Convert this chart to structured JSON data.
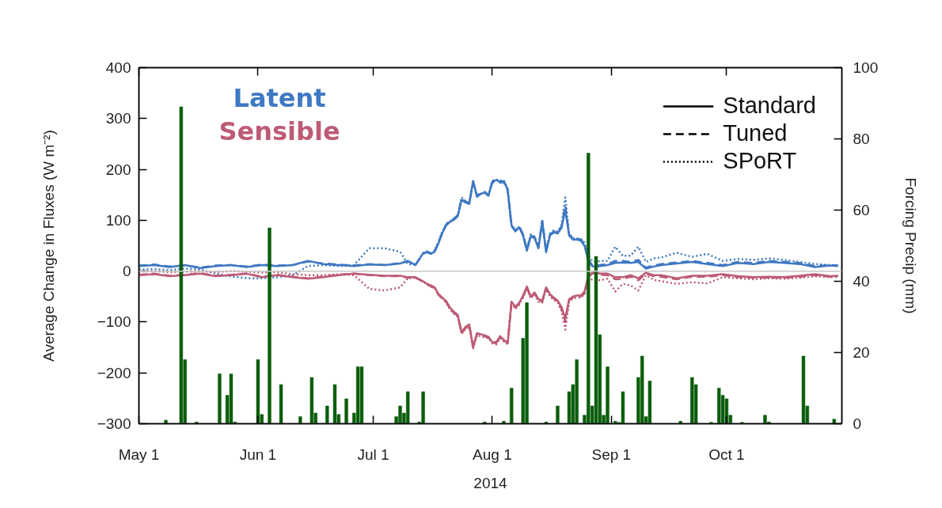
{
  "chart_data": {
    "type": "line",
    "xlabel": "2014",
    "ylabel": "Average Change in Fluxes (W m⁻²)",
    "y2label": "Forcing Precip (mm)",
    "annotations": [
      "Standard",
      "Tuned",
      "SPoRT"
    ],
    "xlim": [
      "2014-05-01",
      "2014-10-31"
    ],
    "xticks": [
      {
        "value": "2014-05-01",
        "label": "May 1"
      },
      {
        "value": "2014-06-01",
        "label": "Jun 1"
      },
      {
        "value": "2014-07-01",
        "label": "Jul 1"
      },
      {
        "value": "2014-08-01",
        "label": "Aug 1"
      },
      {
        "value": "2014-09-01",
        "label": "Sep 1"
      },
      {
        "value": "2014-10-01",
        "label": "Oct 1"
      }
    ],
    "ylim": [
      -300,
      400
    ],
    "yticks": [
      {
        "value": -300,
        "label": "−300"
      },
      {
        "value": -200,
        "label": "−200"
      },
      {
        "value": -100,
        "label": "−100"
      },
      0,
      100,
      200,
      300,
      400
    ],
    "y2lim": [
      0,
      100
    ],
    "y2ticks": [
      0,
      20,
      40,
      60,
      80,
      100
    ],
    "legend": "top left",
    "ref_lines": [
      {
        "axis": "y",
        "value": 0,
        "color": "#c8c8c8"
      }
    ],
    "x": [
      "2014-05-01",
      "2014-05-05",
      "2014-05-09",
      "2014-05-13",
      "2014-05-17",
      "2014-05-21",
      "2014-05-25",
      "2014-05-29",
      "2014-06-02",
      "2014-06-06",
      "2014-06-10",
      "2014-06-14",
      "2014-06-18",
      "2014-06-22",
      "2014-06-26",
      "2014-06-30",
      "2014-07-04",
      "2014-07-08",
      "2014-07-10",
      "2014-07-12",
      "2014-07-14",
      "2014-07-15",
      "2014-07-16",
      "2014-07-17",
      "2014-07-18",
      "2014-07-19",
      "2014-07-20",
      "2014-07-21",
      "2014-07-22",
      "2014-07-23",
      "2014-07-24",
      "2014-07-25",
      "2014-07-26",
      "2014-07-27",
      "2014-07-28",
      "2014-07-29",
      "2014-07-30",
      "2014-07-31",
      "2014-08-01",
      "2014-08-02",
      "2014-08-03",
      "2014-08-04",
      "2014-08-05",
      "2014-08-06",
      "2014-08-07",
      "2014-08-08",
      "2014-08-09",
      "2014-08-10",
      "2014-08-11",
      "2014-08-12",
      "2014-08-13",
      "2014-08-14",
      "2014-08-15",
      "2014-08-16",
      "2014-08-17",
      "2014-08-18",
      "2014-08-19",
      "2014-08-20",
      "2014-08-21",
      "2014-08-22",
      "2014-08-23",
      "2014-08-24",
      "2014-08-25",
      "2014-08-26",
      "2014-08-27",
      "2014-08-28",
      "2014-08-29",
      "2014-08-31",
      "2014-09-02",
      "2014-09-04",
      "2014-09-06",
      "2014-09-08",
      "2014-09-10",
      "2014-09-12",
      "2014-09-14",
      "2014-09-18",
      "2014-09-22",
      "2014-09-26",
      "2014-09-30",
      "2014-10-04",
      "2014-10-08",
      "2014-10-12",
      "2014-10-16",
      "2014-10-20",
      "2014-10-24",
      "2014-10-28",
      "2014-10-30"
    ],
    "series": [
      {
        "name": "Latent",
        "color": "#3f78c2",
        "line_style": "solid",
        "values": [
          10,
          12,
          8,
          12,
          6,
          10,
          12,
          8,
          12,
          10,
          12,
          20,
          14,
          12,
          10,
          13,
          12,
          15,
          20,
          12,
          35,
          37,
          34,
          38,
          55,
          75,
          90,
          97,
          101,
          108,
          140,
          135,
          132,
          177,
          146,
          152,
          154,
          148,
          176,
          179,
          176,
          177,
          160,
          90,
          78,
          86,
          70,
          40,
          68,
          65,
          45,
          97,
          37,
          70,
          76,
          74,
          85,
          120,
          70,
          62,
          62,
          60,
          50,
          20,
          10,
          8,
          10,
          12,
          16,
          17,
          16,
          18,
          5,
          9,
          12,
          15,
          18,
          14,
          10,
          16,
          14,
          18,
          16,
          14,
          8,
          11,
          10
        ]
      },
      {
        "color": "#3f78c2",
        "line_style": "dashed",
        "values": [
          11,
          13,
          9,
          11,
          7,
          11,
          12,
          9,
          13,
          11,
          12,
          19,
          15,
          13,
          11,
          14,
          12,
          16,
          19,
          13,
          34,
          38,
          35,
          40,
          57,
          77,
          92,
          99,
          103,
          110,
          142,
          137,
          134,
          175,
          148,
          154,
          156,
          150,
          174,
          177,
          174,
          175,
          158,
          88,
          80,
          88,
          72,
          42,
          70,
          67,
          47,
          99,
          39,
          72,
          78,
          76,
          88,
          128,
          72,
          64,
          64,
          62,
          54,
          22,
          12,
          10,
          12,
          14,
          20,
          20,
          18,
          22,
          7,
          11,
          14,
          17,
          20,
          16,
          12,
          18,
          16,
          20,
          18,
          16,
          10,
          12,
          11
        ]
      },
      {
        "color": "#3f78c2",
        "line_style": "dotted",
        "values": [
          3,
          4,
          2,
          5,
          3,
          -5,
          -10,
          -14,
          -14,
          -12,
          -8,
          10,
          12,
          10,
          12,
          45,
          45,
          38,
          14,
          12,
          36,
          39,
          36,
          40,
          58,
          78,
          92,
          98,
          103,
          110,
          145,
          138,
          135,
          178,
          148,
          152,
          155,
          150,
          178,
          180,
          178,
          178,
          162,
          92,
          80,
          88,
          72,
          44,
          72,
          68,
          48,
          100,
          40,
          74,
          80,
          78,
          90,
          145,
          74,
          65,
          64,
          64,
          56,
          30,
          20,
          18,
          20,
          20,
          48,
          30,
          30,
          48,
          18,
          25,
          27,
          36,
          28,
          34,
          20,
          24,
          22,
          25,
          22,
          18,
          14,
          12,
          11
        ]
      },
      {
        "name": "Sensible",
        "color": "#bd5b75",
        "line_style": "solid",
        "values": [
          -8,
          -6,
          -10,
          -8,
          -5,
          -10,
          -8,
          -5,
          -12,
          -8,
          -12,
          -15,
          -12,
          -8,
          -5,
          -7,
          -9,
          -9,
          -12,
          -12,
          -20,
          -25,
          -28,
          -32,
          -45,
          -52,
          -59,
          -72,
          -80,
          -86,
          -120,
          -110,
          -105,
          -150,
          -122,
          -124,
          -126,
          -129,
          -140,
          -142,
          -128,
          -135,
          -142,
          -60,
          -70,
          -62,
          -48,
          -30,
          -50,
          -42,
          -55,
          -58,
          -32,
          -45,
          -52,
          -58,
          -70,
          -93,
          -55,
          -50,
          -48,
          -48,
          -40,
          -10,
          -3,
          -2,
          -5,
          -5,
          -12,
          -12,
          -8,
          -14,
          -3,
          -8,
          -8,
          -14,
          -9,
          -9,
          -6,
          -10,
          -12,
          -11,
          -12,
          -9,
          -6,
          -10,
          -9
        ]
      },
      {
        "color": "#bd5b75",
        "line_style": "dashed",
        "values": [
          -7,
          -5,
          -9,
          -7,
          -4,
          -9,
          -7,
          -5,
          -11,
          -7,
          -11,
          -14,
          -11,
          -7,
          -5,
          -8,
          -10,
          -10,
          -13,
          -13,
          -21,
          -26,
          -30,
          -34,
          -47,
          -54,
          -61,
          -74,
          -82,
          -88,
          -122,
          -112,
          -107,
          -148,
          -124,
          -126,
          -128,
          -131,
          -138,
          -140,
          -130,
          -137,
          -140,
          -62,
          -72,
          -64,
          -50,
          -32,
          -52,
          -44,
          -57,
          -60,
          -34,
          -47,
          -54,
          -60,
          -74,
          -100,
          -57,
          -52,
          -50,
          -50,
          -44,
          -12,
          -5,
          -4,
          -7,
          -8,
          -16,
          -15,
          -11,
          -18,
          -5,
          -10,
          -11,
          -16,
          -11,
          -11,
          -8,
          -12,
          -13,
          -13,
          -13,
          -11,
          -8,
          -11,
          -10
        ]
      },
      {
        "color": "#bd5b75",
        "line_style": "dotted",
        "values": [
          -1,
          0,
          -2,
          -1,
          0,
          -2,
          0,
          -1,
          -3,
          -2,
          -6,
          -8,
          -8,
          -6,
          -8,
          -35,
          -38,
          -32,
          -14,
          -13,
          -21,
          -26,
          -30,
          -34,
          -46,
          -54,
          -62,
          -76,
          -84,
          -90,
          -124,
          -114,
          -110,
          -152,
          -126,
          -128,
          -130,
          -132,
          -142,
          -144,
          -132,
          -138,
          -144,
          -62,
          -74,
          -66,
          -52,
          -34,
          -54,
          -46,
          -60,
          -62,
          -36,
          -50,
          -56,
          -62,
          -78,
          -115,
          -60,
          -54,
          -52,
          -52,
          -45,
          -20,
          -16,
          -15,
          -18,
          -15,
          -40,
          -25,
          -28,
          -38,
          -8,
          -17,
          -20,
          -25,
          -22,
          -24,
          -12,
          -14,
          -16,
          -14,
          -15,
          -13,
          -10,
          -12,
          -11
        ]
      },
      {
        "type": "bar",
        "axis": "y2",
        "color": "#0b5d0b",
        "x": [
          "2014-05-08",
          "2014-05-12",
          "2014-05-13",
          "2014-05-16",
          "2014-05-22",
          "2014-05-24",
          "2014-05-25",
          "2014-05-26",
          "2014-06-01",
          "2014-06-02",
          "2014-06-04",
          "2014-06-07",
          "2014-06-12",
          "2014-06-15",
          "2014-06-16",
          "2014-06-19",
          "2014-06-21",
          "2014-06-22",
          "2014-06-24",
          "2014-06-26",
          "2014-06-27",
          "2014-06-28",
          "2014-07-07",
          "2014-07-08",
          "2014-07-09",
          "2014-07-10",
          "2014-07-13",
          "2014-07-14",
          "2014-07-30",
          "2014-08-04",
          "2014-08-06",
          "2014-08-09",
          "2014-08-10",
          "2014-08-15",
          "2014-08-18",
          "2014-08-21",
          "2014-08-22",
          "2014-08-23",
          "2014-08-25",
          "2014-08-26",
          "2014-08-27",
          "2014-08-28",
          "2014-08-29",
          "2014-08-30",
          "2014-08-31",
          "2014-09-02",
          "2014-09-03",
          "2014-09-04",
          "2014-09-08",
          "2014-09-09",
          "2014-09-10",
          "2014-09-11",
          "2014-09-19",
          "2014-09-22",
          "2014-09-23",
          "2014-09-27",
          "2014-09-29",
          "2014-09-30",
          "2014-10-01",
          "2014-10-02",
          "2014-10-05",
          "2014-10-11",
          "2014-10-12",
          "2014-10-21",
          "2014-10-22",
          "2014-10-29"
        ],
        "values": [
          1,
          89,
          18,
          0.5,
          14,
          8,
          14,
          0.5,
          18,
          2.6,
          55,
          11,
          2,
          13,
          3,
          5,
          11,
          2.6,
          7,
          3,
          16,
          16,
          2,
          5,
          3,
          9,
          0.5,
          9,
          0.5,
          0.7,
          10,
          24,
          34,
          0.5,
          5,
          9,
          11,
          18,
          2.4,
          76,
          5,
          47,
          25,
          2.4,
          16,
          0.7,
          0.4,
          9,
          13,
          19,
          2,
          12,
          0.7,
          13,
          11,
          0.4,
          10,
          8,
          7,
          2.4,
          0.4,
          2.4,
          0.5,
          19,
          5,
          1.3
        ]
      }
    ]
  }
}
